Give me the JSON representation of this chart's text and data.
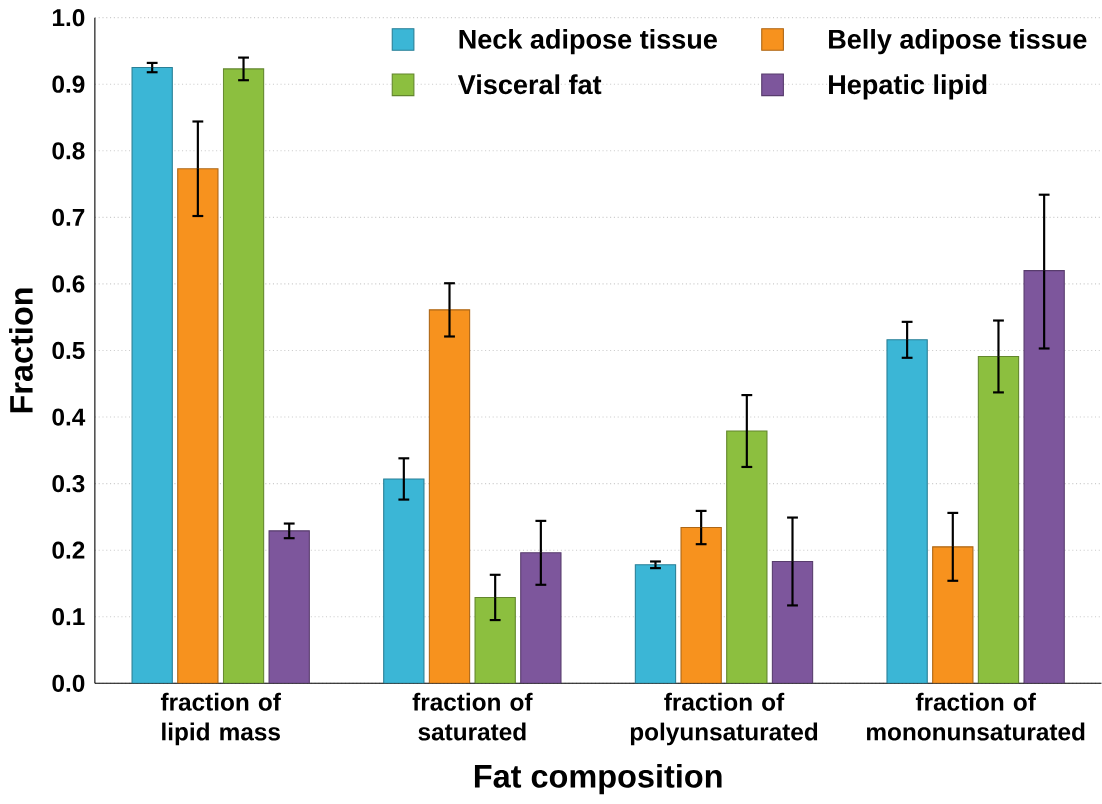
{
  "chart_data": {
    "type": "bar",
    "xlabel": "Fat composition",
    "ylabel": "Fraction",
    "categories": [
      "fraction of lipid mass",
      "fraction of saturated",
      "fraction of polyunsaturated",
      "fraction of mononunsaturated"
    ],
    "series": [
      {
        "name": "Neck adipose tissue",
        "color": "#3bb6d6",
        "values": [
          0.925,
          0.307,
          0.178,
          0.516
        ],
        "errors": [
          0.007,
          0.031,
          0.005,
          0.027
        ]
      },
      {
        "name": "Belly adipose tissue",
        "color": "#f7921e",
        "values": [
          0.773,
          0.561,
          0.234,
          0.205
        ],
        "errors": [
          0.071,
          0.04,
          0.025,
          0.051
        ]
      },
      {
        "name": "Visceral fat",
        "color": "#8cbf3f",
        "values": [
          0.923,
          0.129,
          0.379,
          0.491
        ],
        "errors": [
          0.017,
          0.034,
          0.054,
          0.054
        ]
      },
      {
        "name": "Hepatic lipid",
        "color": "#7d569c",
        "values": [
          0.229,
          0.196,
          0.183,
          0.62
        ],
        "errors": [
          0.011,
          0.048,
          0.066,
          [
            0.503,
            0.734
          ]
        ]
      }
    ],
    "ylim": [
      0,
      1.0
    ],
    "yticks": [
      {
        "value": 0,
        "label": "0.0"
      },
      {
        "value": 0.1,
        "label": "0.1"
      },
      {
        "value": 0.2,
        "label": "0.2"
      },
      {
        "value": 0.3,
        "label": "0.3"
      },
      {
        "value": 0.4,
        "label": "0.4"
      },
      {
        "value": 0.5,
        "label": "0.5"
      },
      {
        "value": 0.6,
        "label": "0.6"
      },
      {
        "value": 0.7,
        "label": "0.7"
      },
      {
        "value": 0.8,
        "label": "0.8"
      },
      {
        "value": 0.9,
        "label": "0.9"
      },
      {
        "value": 1.0,
        "label": "1.0"
      }
    ],
    "grid": "y",
    "legend": "top right"
  }
}
